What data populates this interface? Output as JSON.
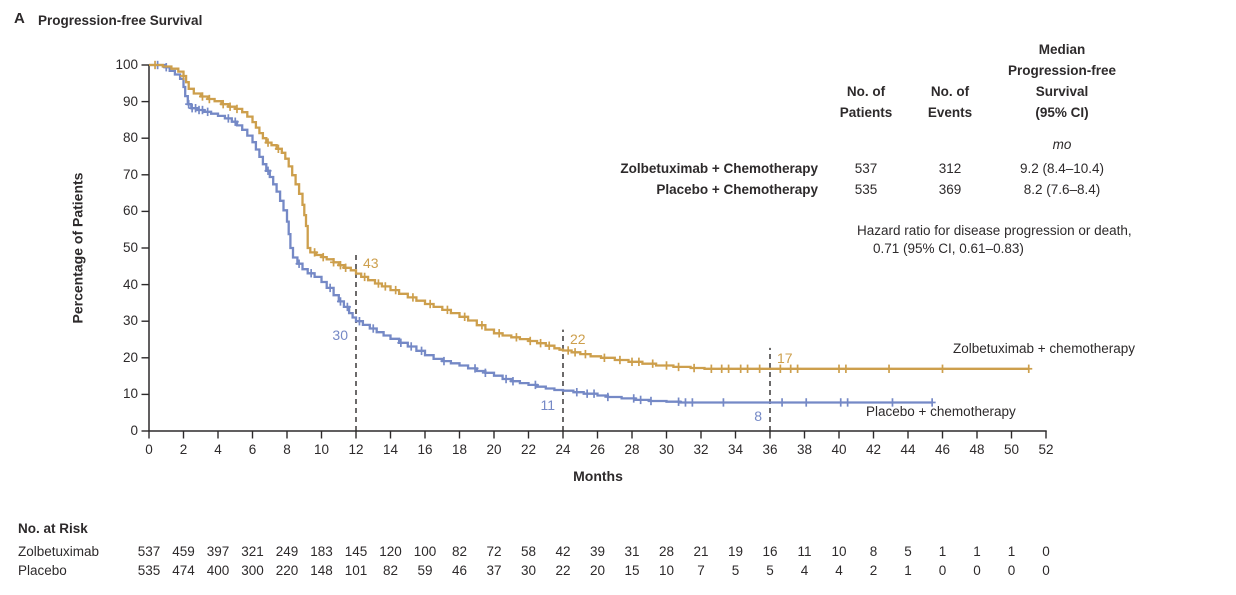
{
  "title": {
    "panel_letter": "A",
    "text": "Progression-free Survival"
  },
  "stats_table": {
    "headers": {
      "patients": [
        "No. of",
        "Patients"
      ],
      "events": [
        "No. of",
        "Events"
      ],
      "median": [
        "Median",
        "Progression-free",
        "Survival",
        "(95% CI)"
      ],
      "unit": "mo"
    },
    "rows": [
      {
        "label": "Zolbetuximab + Chemotherapy",
        "patients": "537",
        "events": "312",
        "median": "9.2 (8.4–10.4)"
      },
      {
        "label": "Placebo + Chemotherapy",
        "patients": "535",
        "events": "369",
        "median": "8.2 (7.6–8.4)"
      }
    ],
    "hazard_note_line1": "Hazard ratio for disease progression or death,",
    "hazard_note_line2": "0.71 (95% CI, 0.61–0.83)"
  },
  "chart_data": {
    "type": "line",
    "subtype": "kaplan-meier-step",
    "title": "Progression-free Survival",
    "xlabel": "Months",
    "ylabel": "Percentage of Patients",
    "xlim": [
      0,
      52
    ],
    "ylim": [
      0,
      100
    ],
    "x_ticks": [
      0,
      2,
      4,
      6,
      8,
      10,
      12,
      14,
      16,
      18,
      20,
      22,
      24,
      26,
      28,
      30,
      32,
      34,
      36,
      38,
      40,
      42,
      44,
      46,
      48,
      50,
      52
    ],
    "y_ticks": [
      0,
      10,
      20,
      30,
      40,
      50,
      60,
      70,
      80,
      90,
      100
    ],
    "grid": false,
    "colors": {
      "zolbetuximab": "#CD9F4C",
      "placebo": "#7589C6",
      "text": "#2d2a2b"
    },
    "series": [
      {
        "name": "Zolbetuximab + chemotherapy",
        "color": "#CD9F4C",
        "steps": [
          [
            0,
            100
          ],
          [
            0.8,
            99.6
          ],
          [
            1.3,
            99
          ],
          [
            1.7,
            98.2
          ],
          [
            2,
            97
          ],
          [
            2.15,
            95.3
          ],
          [
            2.3,
            93.5
          ],
          [
            2.6,
            92.2
          ],
          [
            3,
            91.4
          ],
          [
            3.4,
            90.7
          ],
          [
            3.8,
            90.1
          ],
          [
            4.2,
            89.3
          ],
          [
            4.6,
            88.6
          ],
          [
            5,
            88
          ],
          [
            5.4,
            87.1
          ],
          [
            5.7,
            85.9
          ],
          [
            6,
            84.4
          ],
          [
            6.2,
            82.9
          ],
          [
            6.4,
            81.4
          ],
          [
            6.6,
            80
          ],
          [
            6.8,
            78.8
          ],
          [
            7.1,
            78.1
          ],
          [
            7.4,
            77.1
          ],
          [
            7.7,
            76
          ],
          [
            7.9,
            74.4
          ],
          [
            8.1,
            72.3
          ],
          [
            8.3,
            69.9
          ],
          [
            8.5,
            67.4
          ],
          [
            8.7,
            64.8
          ],
          [
            8.9,
            61.8
          ],
          [
            9,
            59
          ],
          [
            9.1,
            56
          ],
          [
            9.2,
            50
          ],
          [
            9.35,
            48.8
          ],
          [
            9.7,
            48.1
          ],
          [
            10,
            47.5
          ],
          [
            10.3,
            46.9
          ],
          [
            10.7,
            46.1
          ],
          [
            11,
            45.3
          ],
          [
            11.3,
            44.6
          ],
          [
            11.7,
            43.9
          ],
          [
            12,
            43
          ],
          [
            12.3,
            42.1
          ],
          [
            12.7,
            41.2
          ],
          [
            13.1,
            40.3
          ],
          [
            13.5,
            39.5
          ],
          [
            14,
            38.5
          ],
          [
            14.5,
            37.5
          ],
          [
            15,
            36.5
          ],
          [
            15.5,
            35.6
          ],
          [
            16,
            34.7
          ],
          [
            16.5,
            33.9
          ],
          [
            17,
            33.1
          ],
          [
            17.5,
            32.2
          ],
          [
            18,
            31.2
          ],
          [
            18.5,
            30.2
          ],
          [
            19,
            28.9
          ],
          [
            19.5,
            27.7
          ],
          [
            20,
            26.7
          ],
          [
            20.5,
            26.1
          ],
          [
            21,
            25.6
          ],
          [
            21.5,
            25.1
          ],
          [
            22,
            24.6
          ],
          [
            22.5,
            24
          ],
          [
            23,
            23.3
          ],
          [
            23.5,
            22.6
          ],
          [
            23.8,
            22.2
          ],
          [
            24,
            22
          ],
          [
            24.5,
            21.5
          ],
          [
            25,
            21
          ],
          [
            25.6,
            20.4
          ],
          [
            26.2,
            20
          ],
          [
            27,
            19.4
          ],
          [
            27.8,
            18.9
          ],
          [
            28.6,
            18.4
          ],
          [
            29.4,
            17.9
          ],
          [
            30.4,
            17.5
          ],
          [
            31.4,
            17.2
          ],
          [
            32.2,
            17
          ],
          [
            51,
            17
          ]
        ],
        "censor_ticks": [
          0.35,
          2,
          3.1,
          3.5,
          4.3,
          4.7,
          5.1,
          6.9,
          7.5,
          9.6,
          10.1,
          10.7,
          11.1,
          11.4,
          12.5,
          13.3,
          13.7,
          14.3,
          15.3,
          16.3,
          17.3,
          18.3,
          19.3,
          20.3,
          21.3,
          22.1,
          22.7,
          23.2,
          24.3,
          24.7,
          25.3,
          26.4,
          27.3,
          28,
          28.4,
          29.2,
          30,
          30.7,
          31.6,
          32.6,
          33.2,
          33.6,
          34.3,
          34.7,
          35.4,
          36.6,
          37.2,
          37.6,
          40,
          40.4,
          42.9,
          46,
          51
        ]
      },
      {
        "name": "Placebo + chemotherapy",
        "color": "#7589C6",
        "steps": [
          [
            0,
            100
          ],
          [
            0.9,
            99.4
          ],
          [
            1.2,
            98.4
          ],
          [
            1.5,
            97.4
          ],
          [
            1.8,
            96.2
          ],
          [
            2,
            94
          ],
          [
            2.1,
            91.5
          ],
          [
            2.25,
            89.3
          ],
          [
            2.45,
            88.2
          ],
          [
            2.8,
            87.7
          ],
          [
            3.2,
            87.2
          ],
          [
            3.6,
            86.7
          ],
          [
            4,
            86.1
          ],
          [
            4.4,
            85.4
          ],
          [
            4.8,
            84.5
          ],
          [
            5.1,
            83.5
          ],
          [
            5.4,
            82.3
          ],
          [
            5.7,
            80.7
          ],
          [
            6,
            78.9
          ],
          [
            6.2,
            76.9
          ],
          [
            6.4,
            74.9
          ],
          [
            6.6,
            72.9
          ],
          [
            6.8,
            71.1
          ],
          [
            7,
            69.4
          ],
          [
            7.2,
            67.4
          ],
          [
            7.4,
            65.4
          ],
          [
            7.6,
            62.9
          ],
          [
            7.8,
            60.3
          ],
          [
            8,
            57.2
          ],
          [
            8.1,
            53.8
          ],
          [
            8.2,
            50
          ],
          [
            8.35,
            47.4
          ],
          [
            8.6,
            45.7
          ],
          [
            8.9,
            44.2
          ],
          [
            9.2,
            43.1
          ],
          [
            9.6,
            42.1
          ],
          [
            10,
            40.7
          ],
          [
            10.3,
            39.1
          ],
          [
            10.7,
            37.1
          ],
          [
            11,
            35.4
          ],
          [
            11.3,
            33.9
          ],
          [
            11.6,
            32.2
          ],
          [
            11.8,
            31
          ],
          [
            12,
            30
          ],
          [
            12.4,
            29
          ],
          [
            12.8,
            28
          ],
          [
            13.2,
            27
          ],
          [
            13.6,
            26.1
          ],
          [
            14,
            25.2
          ],
          [
            14.5,
            24.1
          ],
          [
            15,
            23.1
          ],
          [
            15.5,
            21.9
          ],
          [
            16,
            20.7
          ],
          [
            16.5,
            19.7
          ],
          [
            17,
            19.1
          ],
          [
            17.5,
            18.5
          ],
          [
            18,
            17.9
          ],
          [
            18.5,
            17.1
          ],
          [
            19,
            16.4
          ],
          [
            19.5,
            15.9
          ],
          [
            20,
            15.1
          ],
          [
            20.5,
            14.2
          ],
          [
            21,
            13.6
          ],
          [
            21.5,
            13.1
          ],
          [
            22,
            12.6
          ],
          [
            22.5,
            12.1
          ],
          [
            23,
            11.6
          ],
          [
            23.5,
            11.2
          ],
          [
            24,
            11
          ],
          [
            24.6,
            10.6
          ],
          [
            25.2,
            10.2
          ],
          [
            26,
            9.7
          ],
          [
            26.6,
            9.3
          ],
          [
            27.4,
            8.9
          ],
          [
            28.2,
            8.5
          ],
          [
            29,
            8.2
          ],
          [
            30,
            8
          ],
          [
            30.8,
            7.8
          ],
          [
            45.4,
            7.8
          ]
        ],
        "censor_ticks": [
          0.5,
          1,
          2.3,
          2.5,
          2.7,
          2.9,
          3.1,
          3.4,
          4.6,
          5,
          6.9,
          8.7,
          9.4,
          10.5,
          11.1,
          11.5,
          12.2,
          13,
          14.6,
          15.2,
          15.8,
          17.1,
          18.9,
          19.5,
          20.7,
          21.1,
          22.4,
          24.8,
          25.4,
          25.8,
          26.6,
          28.1,
          28.5,
          29.1,
          30.7,
          31.1,
          31.5,
          33.3,
          36.7,
          38.1,
          40.1,
          40.5,
          43.1,
          45.4
        ]
      }
    ],
    "milestones": [
      {
        "month": 12,
        "zolbetuximab": 43,
        "placebo": 30
      },
      {
        "month": 24,
        "zolbetuximab": 22,
        "placebo": 11
      },
      {
        "month": 36,
        "zolbetuximab": 17,
        "placebo": 8
      }
    ],
    "risk_table": {
      "title": "No. at Risk",
      "rows": [
        {
          "label": "Zolbetuximab",
          "counts": [
            537,
            459,
            397,
            321,
            249,
            183,
            145,
            120,
            100,
            82,
            72,
            58,
            42,
            39,
            31,
            28,
            21,
            19,
            16,
            11,
            10,
            8,
            5,
            1,
            1,
            1,
            0
          ]
        },
        {
          "label": "Placebo",
          "counts": [
            535,
            474,
            400,
            300,
            220,
            148,
            101,
            82,
            59,
            46,
            37,
            30,
            22,
            20,
            15,
            10,
            7,
            5,
            5,
            4,
            4,
            2,
            1,
            0,
            0,
            0,
            0
          ]
        }
      ]
    }
  }
}
